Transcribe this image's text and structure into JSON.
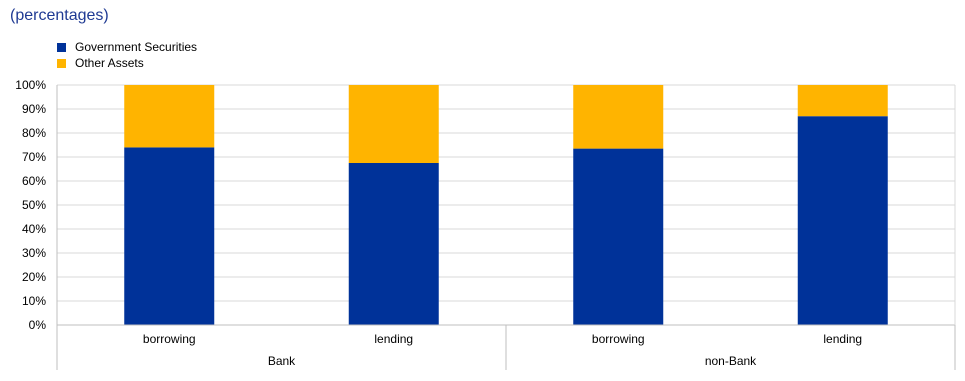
{
  "subtitle": "(percentages)",
  "colors": {
    "government_securities": "#003299",
    "other_assets": "#FFB400",
    "grid": "#d9d9d9",
    "axis": "#bfbfbf"
  },
  "chart_data": {
    "type": "bar",
    "stacked": true,
    "categories": [
      "borrowing",
      "lending",
      "borrowing",
      "lending"
    ],
    "groups": [
      {
        "label": "Bank",
        "categories": [
          "borrowing",
          "lending"
        ]
      },
      {
        "label": "non-Bank",
        "categories": [
          "borrowing",
          "lending"
        ]
      }
    ],
    "series": [
      {
        "name": "Government Securities",
        "values": [
          74,
          67.5,
          73.5,
          87
        ]
      },
      {
        "name": "Other Assets",
        "values": [
          26,
          32.5,
          26.5,
          13
        ]
      }
    ],
    "ylim": [
      0,
      100
    ],
    "yticks": [
      "0%",
      "10%",
      "20%",
      "30%",
      "40%",
      "50%",
      "60%",
      "70%",
      "80%",
      "90%",
      "100%"
    ],
    "grid": true,
    "legend": "top-left"
  }
}
